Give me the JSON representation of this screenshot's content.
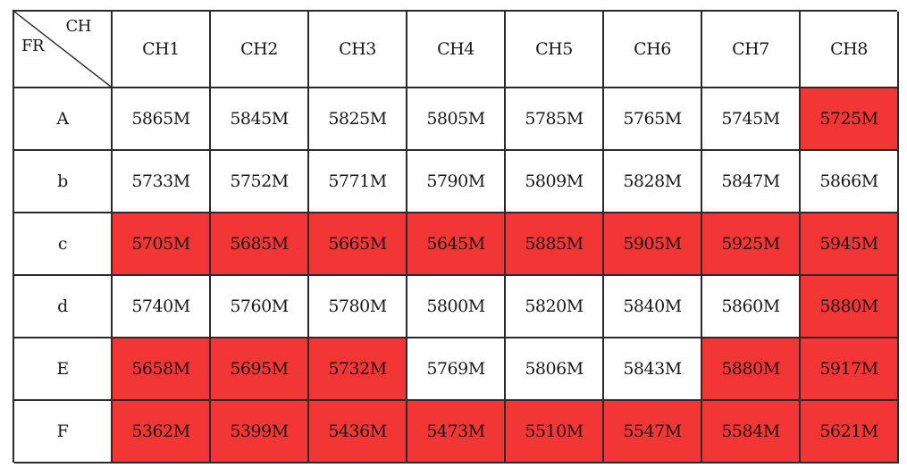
{
  "header": {
    "corner_col_label": "CH",
    "corner_row_label": "FR",
    "columns": [
      "CH1",
      "CH2",
      "CH3",
      "CH4",
      "CH5",
      "CH6",
      "CH7",
      "CH8"
    ]
  },
  "rows": [
    {
      "label": "A",
      "cells": [
        {
          "value": "5865M",
          "highlight": false
        },
        {
          "value": "5845M",
          "highlight": false
        },
        {
          "value": "5825M",
          "highlight": false
        },
        {
          "value": "5805M",
          "highlight": false
        },
        {
          "value": "5785M",
          "highlight": false
        },
        {
          "value": "5765M",
          "highlight": false
        },
        {
          "value": "5745M",
          "highlight": false
        },
        {
          "value": "5725M",
          "highlight": true
        }
      ]
    },
    {
      "label": "b",
      "cells": [
        {
          "value": "5733M",
          "highlight": false
        },
        {
          "value": "5752M",
          "highlight": false
        },
        {
          "value": "5771M",
          "highlight": false
        },
        {
          "value": "5790M",
          "highlight": false
        },
        {
          "value": "5809M",
          "highlight": false
        },
        {
          "value": "5828M",
          "highlight": false
        },
        {
          "value": "5847M",
          "highlight": false
        },
        {
          "value": "5866M",
          "highlight": false
        }
      ]
    },
    {
      "label": "c",
      "cells": [
        {
          "value": "5705M",
          "highlight": true
        },
        {
          "value": "5685M",
          "highlight": true
        },
        {
          "value": "5665M",
          "highlight": true
        },
        {
          "value": "5645M",
          "highlight": true
        },
        {
          "value": "5885M",
          "highlight": true
        },
        {
          "value": "5905M",
          "highlight": true
        },
        {
          "value": "5925M",
          "highlight": true
        },
        {
          "value": "5945M",
          "highlight": true
        }
      ]
    },
    {
      "label": "d",
      "cells": [
        {
          "value": "5740M",
          "highlight": false
        },
        {
          "value": "5760M",
          "highlight": false
        },
        {
          "value": "5780M",
          "highlight": false
        },
        {
          "value": "5800M",
          "highlight": false
        },
        {
          "value": "5820M",
          "highlight": false
        },
        {
          "value": "5840M",
          "highlight": false
        },
        {
          "value": "5860M",
          "highlight": false
        },
        {
          "value": "5880M",
          "highlight": true
        }
      ]
    },
    {
      "label": "E",
      "cells": [
        {
          "value": "5658M",
          "highlight": true
        },
        {
          "value": "5695M",
          "highlight": true
        },
        {
          "value": "5732M",
          "highlight": true
        },
        {
          "value": "5769M",
          "highlight": false
        },
        {
          "value": "5806M",
          "highlight": false
        },
        {
          "value": "5843M",
          "highlight": false
        },
        {
          "value": "5880M",
          "highlight": true
        },
        {
          "value": "5917M",
          "highlight": true
        }
      ]
    },
    {
      "label": "F",
      "cells": [
        {
          "value": "5362M",
          "highlight": true
        },
        {
          "value": "5399M",
          "highlight": true
        },
        {
          "value": "5436M",
          "highlight": true
        },
        {
          "value": "5473M",
          "highlight": true
        },
        {
          "value": "5510M",
          "highlight": true
        },
        {
          "value": "5547M",
          "highlight": true
        },
        {
          "value": "5584M",
          "highlight": true
        },
        {
          "value": "5621M",
          "highlight": true
        }
      ]
    }
  ],
  "colors": {
    "highlight": "#f23535",
    "border": "#2b2b2b",
    "background": "#ffffff"
  }
}
